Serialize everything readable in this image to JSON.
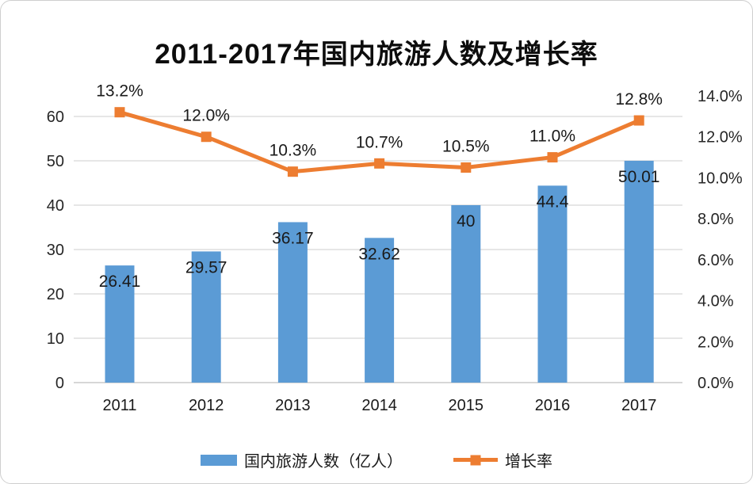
{
  "title": {
    "full": "2011-2017年国内旅游人数及增长率",
    "year_range": "2011-2017",
    "rest": "年国内旅游人数及增长率"
  },
  "colors": {
    "bar": "#5B9BD5",
    "line": "#ED7D31",
    "grid": "#D6D6D6",
    "axis_line": "#BFBFBF",
    "text": "#262626",
    "background": "#FFFFFF"
  },
  "chart_data": {
    "type": "bar",
    "subtype": "combo-bar-line-dual-axis",
    "title": "2011-2017年国内旅游人数及增长率",
    "categories": [
      "2011",
      "2012",
      "2013",
      "2014",
      "2015",
      "2016",
      "2017"
    ],
    "series": [
      {
        "name": "国内旅游人数（亿人）",
        "type": "bar",
        "axis": "left",
        "color": "#5B9BD5",
        "values": [
          26.41,
          29.57,
          36.17,
          32.62,
          40,
          44.4,
          50.01
        ],
        "labels": [
          "26.41",
          "29.57",
          "36.17",
          "32.62",
          "40",
          "44.4",
          "50.01"
        ]
      },
      {
        "name": "增长率",
        "type": "line",
        "axis": "right",
        "color": "#ED7D31",
        "values": [
          13.2,
          12.0,
          10.3,
          10.7,
          10.5,
          11.0,
          12.8
        ],
        "labels": [
          "13.2%",
          "12.0%",
          "10.3%",
          "10.7%",
          "10.5%",
          "11.0%",
          "12.8%"
        ]
      }
    ],
    "left_axis": {
      "min": 0,
      "max": 60,
      "step": 10,
      "ticks": [
        "0",
        "10",
        "20",
        "30",
        "40",
        "50",
        "60"
      ]
    },
    "right_axis": {
      "min": 0,
      "max": 14,
      "step": 2,
      "ticks": [
        "0.0%",
        "2.0%",
        "4.0%",
        "6.0%",
        "8.0%",
        "10.0%",
        "12.0%",
        "14.0%"
      ]
    },
    "grid": "horizontal",
    "legend_position": "bottom",
    "legend": [
      {
        "label": "国内旅游人数（亿人）",
        "swatch": "bar"
      },
      {
        "label": "增长率",
        "swatch": "line-marker"
      }
    ]
  }
}
